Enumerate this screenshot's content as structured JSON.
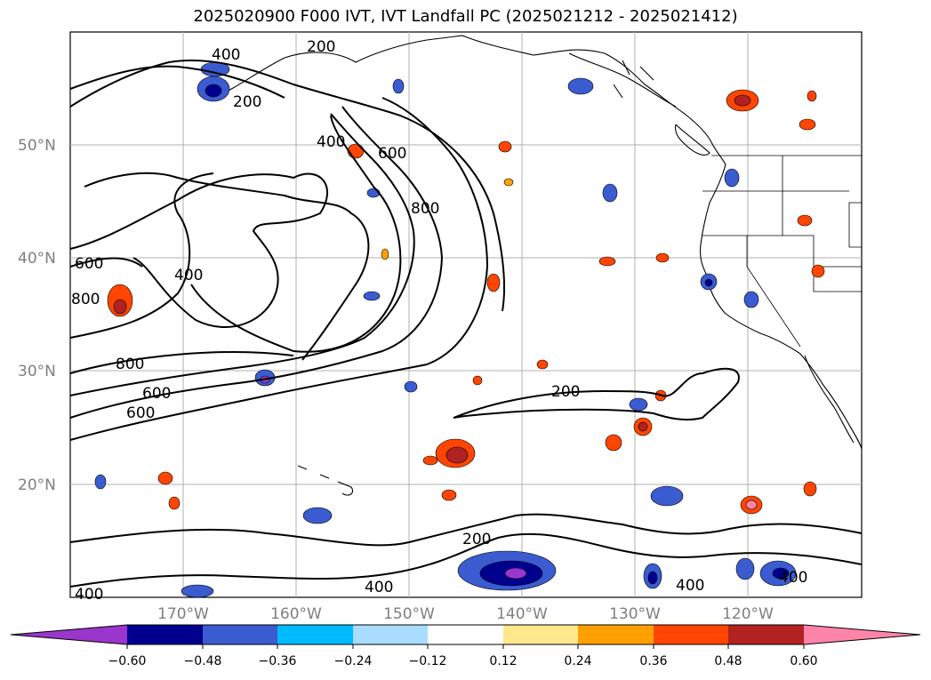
{
  "title": "2025020900 F000 IVT, IVT Landfall PC (2025021212 - 2025021412)",
  "lat_labels": [
    "50°N",
    "40°N",
    "30°N",
    "20°N"
  ],
  "lon_labels": [
    "170°W",
    "160°W",
    "150°W",
    "140°W",
    "130°W",
    "120°W"
  ],
  "contour_labels": [
    "400",
    "200",
    "200",
    "400",
    "600",
    "800",
    "600",
    "800",
    "400",
    "800",
    "600",
    "600",
    "200",
    "200",
    "400",
    "400",
    "400",
    "400"
  ],
  "colorbar": {
    "ticks": [
      "−0.60",
      "−0.48",
      "−0.36",
      "−0.24",
      "−0.12",
      "0.12",
      "0.24",
      "0.36",
      "0.48",
      "0.60"
    ],
    "colors": [
      "#9a36cc",
      "#00008f",
      "#3a5cd0",
      "#00bbff",
      "#aadcff",
      "#ffffff",
      "#ffe88c",
      "#ffa000",
      "#ff4500",
      "#b22222",
      "#ff85a8"
    ]
  }
}
